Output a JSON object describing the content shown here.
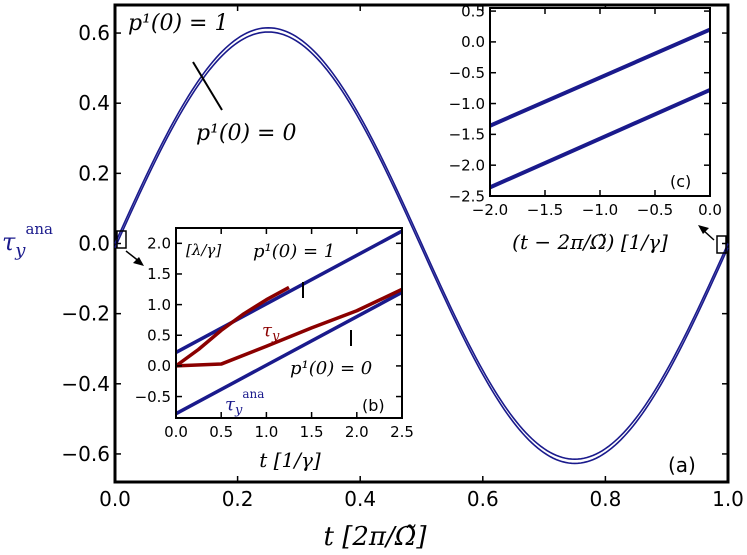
{
  "chart_data": [
    {
      "panel": "(a)",
      "type": "line",
      "xlabel": "t [2π/Ω̃]",
      "ylabel": "τ_y^ana",
      "xlim": [
        0.0,
        1.0
      ],
      "ylim": [
        -0.68,
        0.68
      ],
      "xticks": [
        "0.0",
        "0.2",
        "0.4",
        "0.6",
        "0.8",
        "1.0"
      ],
      "yticks": [
        "0.6",
        "0.4",
        "0.2",
        "0.0",
        "−0.2",
        "−0.4",
        "−0.6"
      ],
      "annotations": [
        "p¹(0) = 1",
        "p¹(0) = 0"
      ],
      "series": [
        {
          "name": "p¹(0) = 1",
          "color": "#1a1a8c",
          "amplitude": 0.615,
          "offset": 0.0
        },
        {
          "name": "p¹(0) = 0",
          "color": "#1a1a8c",
          "amplitude": 0.615,
          "offset": -0.012
        }
      ]
    },
    {
      "panel": "(b)",
      "type": "line",
      "xlabel": "t [1/γ]",
      "ylabel": "[λ/γ]",
      "xlim": [
        0.0,
        2.5
      ],
      "ylim": [
        -0.85,
        2.25
      ],
      "xticks": [
        "0.0",
        "0.5",
        "1.0",
        "1.5",
        "2.0",
        "2.5"
      ],
      "yticks": [
        "2.0",
        "1.5",
        "1.0",
        "0.5",
        "0.0",
        "−0.5"
      ],
      "annotations": [
        "p¹(0) = 1",
        "p¹(0) = 0"
      ],
      "series": [
        {
          "name": "τ_y^ana",
          "color": "#1a1a8c",
          "x": [
            0.0,
            2.5
          ],
          "y": [
            0.22,
            2.2
          ]
        },
        {
          "name": "τ_y^ana",
          "color": "#1a1a8c",
          "x": [
            0.0,
            2.5
          ],
          "y": [
            -0.78,
            1.2
          ]
        },
        {
          "name": "τ_y",
          "color": "#8b0000",
          "x": [
            0.0,
            0.25,
            0.5,
            0.75,
            1.0,
            1.25
          ],
          "y": [
            0.0,
            0.27,
            0.58,
            0.85,
            1.08,
            1.28
          ]
        },
        {
          "name": "τ_y",
          "color": "#8b0000",
          "x": [
            0.0,
            0.5,
            1.0,
            1.5,
            2.0,
            2.5
          ],
          "y": [
            0.0,
            0.03,
            0.32,
            0.62,
            0.9,
            1.25
          ]
        }
      ]
    },
    {
      "panel": "(c)",
      "type": "line",
      "xlabel": "(t − 2π/Ω̃) [1/γ]",
      "xlim": [
        -2.0,
        0.0
      ],
      "ylim": [
        -2.5,
        0.55
      ],
      "xticks": [
        "−2.0",
        "−1.5",
        "−1.0",
        "−0.5",
        "0.0"
      ],
      "yticks": [
        "0.5",
        "0.0",
        "−0.5",
        "−1.0",
        "−1.5",
        "−2.0",
        "−2.5"
      ],
      "series": [
        {
          "name": "p¹(0) = 1",
          "color": "#1a1a8c",
          "x": [
            -2.0,
            0.0
          ],
          "y": [
            -1.36,
            0.2
          ]
        },
        {
          "name": "p¹(0) = 0",
          "color": "#1a1a8c",
          "x": [
            -2.0,
            0.0
          ],
          "y": [
            -2.36,
            -0.78
          ]
        }
      ]
    }
  ]
}
